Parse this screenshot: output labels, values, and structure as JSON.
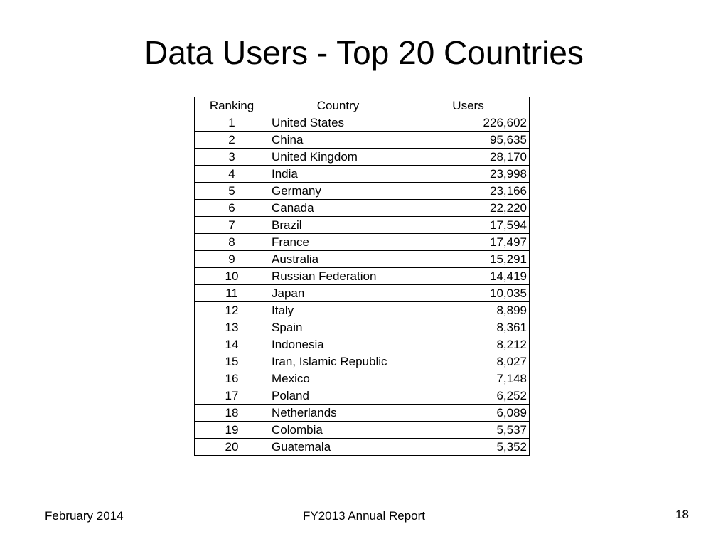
{
  "title": "Data Users - Top 20 Countries",
  "table": {
    "headers": {
      "ranking": "Ranking",
      "country": "Country",
      "users": "Users"
    },
    "rows": [
      {
        "rank": "1",
        "country": "United States",
        "users": "226,602"
      },
      {
        "rank": "2",
        "country": "China",
        "users": "95,635"
      },
      {
        "rank": "3",
        "country": "United Kingdom",
        "users": "28,170"
      },
      {
        "rank": "4",
        "country": "India",
        "users": "23,998"
      },
      {
        "rank": "5",
        "country": "Germany",
        "users": "23,166"
      },
      {
        "rank": "6",
        "country": "Canada",
        "users": "22,220"
      },
      {
        "rank": "7",
        "country": "Brazil",
        "users": "17,594"
      },
      {
        "rank": "8",
        "country": "France",
        "users": "17,497"
      },
      {
        "rank": "9",
        "country": "Australia",
        "users": "15,291"
      },
      {
        "rank": "10",
        "country": "Russian Federation",
        "users": "14,419"
      },
      {
        "rank": "11",
        "country": "Japan",
        "users": "10,035"
      },
      {
        "rank": "12",
        "country": "Italy",
        "users": "8,899"
      },
      {
        "rank": "13",
        "country": "Spain",
        "users": "8,361"
      },
      {
        "rank": "14",
        "country": "Indonesia",
        "users": "8,212"
      },
      {
        "rank": "15",
        "country": "Iran, Islamic Republic",
        "users": "8,027"
      },
      {
        "rank": "16",
        "country": "Mexico",
        "users": "7,148"
      },
      {
        "rank": "17",
        "country": "Poland",
        "users": "6,252"
      },
      {
        "rank": "18",
        "country": "Netherlands",
        "users": "6,089"
      },
      {
        "rank": "19",
        "country": "Colombia",
        "users": "5,537"
      },
      {
        "rank": "20",
        "country": "Guatemala",
        "users": "5,352"
      }
    ]
  },
  "footer": {
    "date": "February 2014",
    "report": "FY2013 Annual Report",
    "page_number": "18"
  }
}
